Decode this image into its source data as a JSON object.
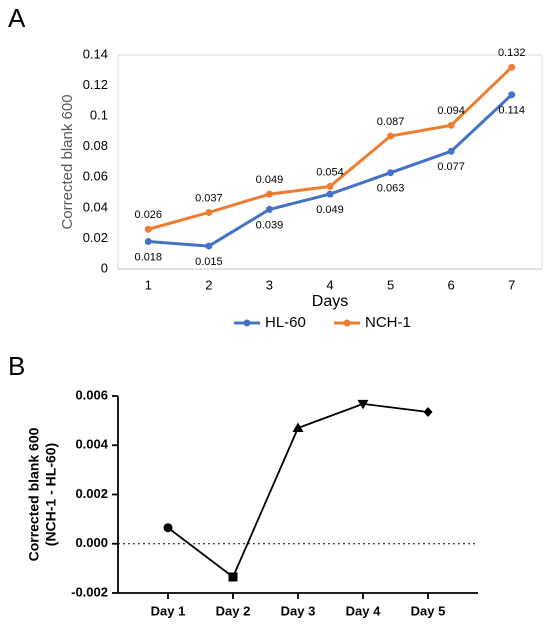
{
  "chart_data": [
    {
      "type": "line",
      "panel_label": "A",
      "ylabel": "Corrected blank 600",
      "xlabel": "Days",
      "x": [
        1,
        2,
        3,
        4,
        5,
        6,
        7
      ],
      "xlim": [
        0.5,
        7.5
      ],
      "xticks": [
        1,
        2,
        3,
        4,
        5,
        6,
        7
      ],
      "ylim": [
        0,
        0.14
      ],
      "yticks": [
        0,
        0.02,
        0.04,
        0.06,
        0.08,
        0.1,
        0.12,
        0.14
      ],
      "series": [
        {
          "name": "HL-60",
          "color": "#4472c4",
          "values": [
            0.018,
            0.015,
            0.039,
            0.049,
            0.063,
            0.077,
            0.114
          ]
        },
        {
          "name": "NCH-1",
          "color": "#ed7d31",
          "values": [
            0.026,
            0.037,
            0.049,
            0.054,
            0.087,
            0.094,
            0.132
          ]
        }
      ]
    },
    {
      "type": "line",
      "panel_label": "B",
      "ylabel": [
        "Corrected blank 600",
        "(NCH-1 - HL-60)"
      ],
      "categories": [
        "Day 1",
        "Day 2",
        "Day 3",
        "Day 4",
        "Day 5"
      ],
      "values": [
        0.00065,
        -0.00135,
        0.0047,
        0.00568,
        0.00535
      ],
      "color": "#000000",
      "markers": [
        "circle",
        "square",
        "triangle-up",
        "triangle-down",
        "diamond"
      ],
      "ylim": [
        -0.002,
        0.006
      ],
      "yticks": [
        -0.002,
        {
          "value": 0,
          "label": "0.000"
        },
        0.002,
        0.004,
        0.006
      ],
      "zero_line": true
    }
  ]
}
